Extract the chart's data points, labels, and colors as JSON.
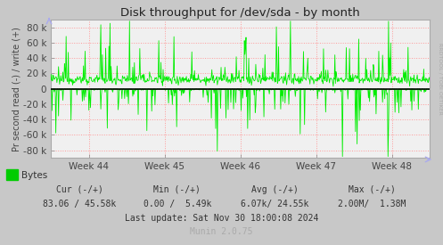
{
  "title": "Disk throughput for /dev/sda - by month",
  "ylabel": "Pr second read (-) / write (+)",
  "xlabel_ticks": [
    "Week 44",
    "Week 45",
    "Week 46",
    "Week 47",
    "Week 48"
  ],
  "ylim": [
    -90000,
    90000
  ],
  "yticks": [
    -80000,
    -60000,
    -40000,
    -20000,
    0,
    20000,
    40000,
    60000,
    80000
  ],
  "ytick_labels": [
    "-80 k",
    "-60 k",
    "-40 k",
    "-20 k",
    "0",
    "20 k",
    "40 k",
    "60 k",
    "80 k"
  ],
  "line_color": "#00ee00",
  "zero_line_color": "#000000",
  "plot_bg_color": "#f0f0f0",
  "outer_bg_color": "#c8c8c8",
  "grid_color": "#ff9999",
  "grid_style": ":",
  "legend_label": "Bytes",
  "legend_color": "#00cc00",
  "rrdtool_text": "RRDTOOL / TOBI OETIKER",
  "num_points": 700,
  "seed": 12345
}
